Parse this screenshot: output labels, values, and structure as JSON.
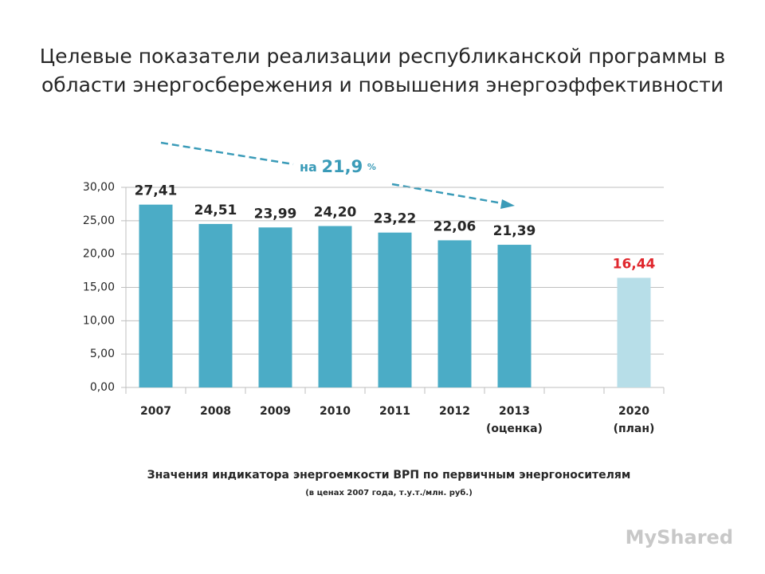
{
  "chart_data": {
    "type": "bar",
    "title_lines": [
      "Целевые показатели реализации республиканской программы в",
      "области энергосбережения и повышения энергоэффективности"
    ],
    "categories": [
      "2007",
      "2008",
      "2009",
      "2010",
      "2011",
      "2012",
      "2013",
      null,
      "2020"
    ],
    "category_notes": [
      null,
      null,
      null,
      null,
      null,
      null,
      "(оценка)",
      null,
      "(план)"
    ],
    "values": [
      27.41,
      24.51,
      23.99,
      24.2,
      23.22,
      22.06,
      21.39,
      null,
      16.44
    ],
    "value_labels": [
      "27,41",
      "24,51",
      "23,99",
      "24,20",
      "23,22",
      "22,06",
      "21,39",
      null,
      "16,44"
    ],
    "colors": [
      "#4bacc6",
      "#4bacc6",
      "#4bacc6",
      "#4bacc6",
      "#4bacc6",
      "#4bacc6",
      "#4bacc6",
      null,
      "#b7dee8"
    ],
    "value_label_colors": [
      "#262626",
      "#262626",
      "#262626",
      "#262626",
      "#262626",
      "#262626",
      "#262626",
      null,
      "#e0282e"
    ],
    "ylim": [
      0,
      30
    ],
    "yticks": [
      {
        "value": 0,
        "label": "0,00"
      },
      {
        "value": 5,
        "label": "5,00"
      },
      {
        "value": 10,
        "label": "10,00"
      },
      {
        "value": 15,
        "label": "15,00"
      },
      {
        "value": 20,
        "label": "20,00"
      },
      {
        "value": 25,
        "label": "25,00"
      },
      {
        "value": 30,
        "label": "30,00"
      }
    ],
    "grid": true,
    "annotation": {
      "text": "на",
      "value": "21,9",
      "unit": "%"
    },
    "caption": "Значения индикатора энергоемкости ВРП по первичным энергоносителям",
    "subcaption": "(в ценах 2007 года, т.у.т./млн. руб.)",
    "watermark": "MyShared"
  }
}
